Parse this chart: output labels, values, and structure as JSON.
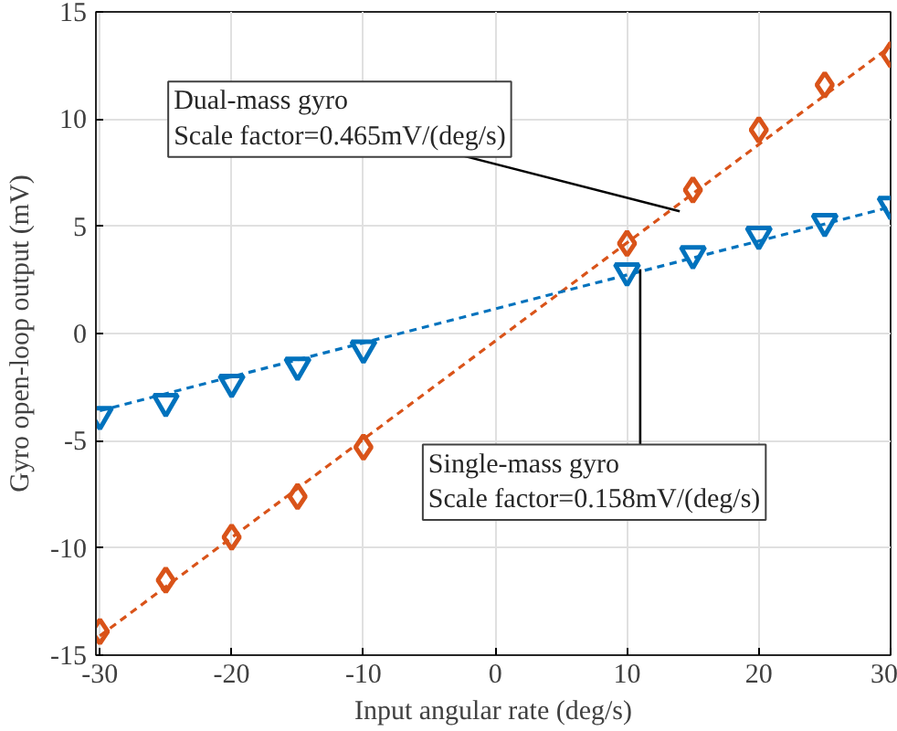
{
  "chart_data": {
    "type": "scatter",
    "xlabel": "Input angular rate (deg/s)",
    "ylabel": "Gyro open-loop output (mV)",
    "xlim": [
      -30.3,
      30
    ],
    "ylim": [
      -15,
      15
    ],
    "xticks": [
      -30,
      -20,
      -10,
      0,
      10,
      20,
      30
    ],
    "yticks": [
      -15,
      -10,
      -5,
      0,
      5,
      10,
      15
    ],
    "grid": true,
    "series": [
      {
        "type": "line",
        "color": "#d95319",
        "line_style": "dashed",
        "marker": "none",
        "x": [
          -30,
          30
        ],
        "values": [
          -14.1,
          13.4
        ]
      },
      {
        "type": "line",
        "color": "#0072bd",
        "line_style": "dashed",
        "marker": "none",
        "x": [
          -30,
          30
        ],
        "values": [
          -3.6,
          5.9
        ]
      },
      {
        "color": "#d95319",
        "marker": "diamond",
        "x": [
          -30,
          -25,
          -20,
          -15,
          -10,
          10,
          15,
          20,
          25,
          30
        ],
        "values": [
          -13.9,
          -11.5,
          -9.5,
          -7.6,
          -5.3,
          4.2,
          6.7,
          9.5,
          11.6,
          13.0
        ]
      },
      {
        "color": "#0072bd",
        "marker": "triangle",
        "x": [
          -30,
          -25,
          -20,
          -15,
          -10,
          10,
          15,
          20,
          25,
          30
        ],
        "values": [
          -3.8,
          -3.2,
          -2.3,
          -1.5,
          -0.7,
          2.9,
          3.7,
          4.6,
          5.2,
          6.0
        ]
      }
    ],
    "annotations": [
      {
        "text": "Dual-mass gyro\nScale factor=0.465mV/(deg/s)",
        "x": 14,
        "y": 5.7
      },
      {
        "text": "Single-mass gyro\nScale factor=0.158mV/(deg/s)",
        "x": 11,
        "y": 3
      }
    ]
  }
}
